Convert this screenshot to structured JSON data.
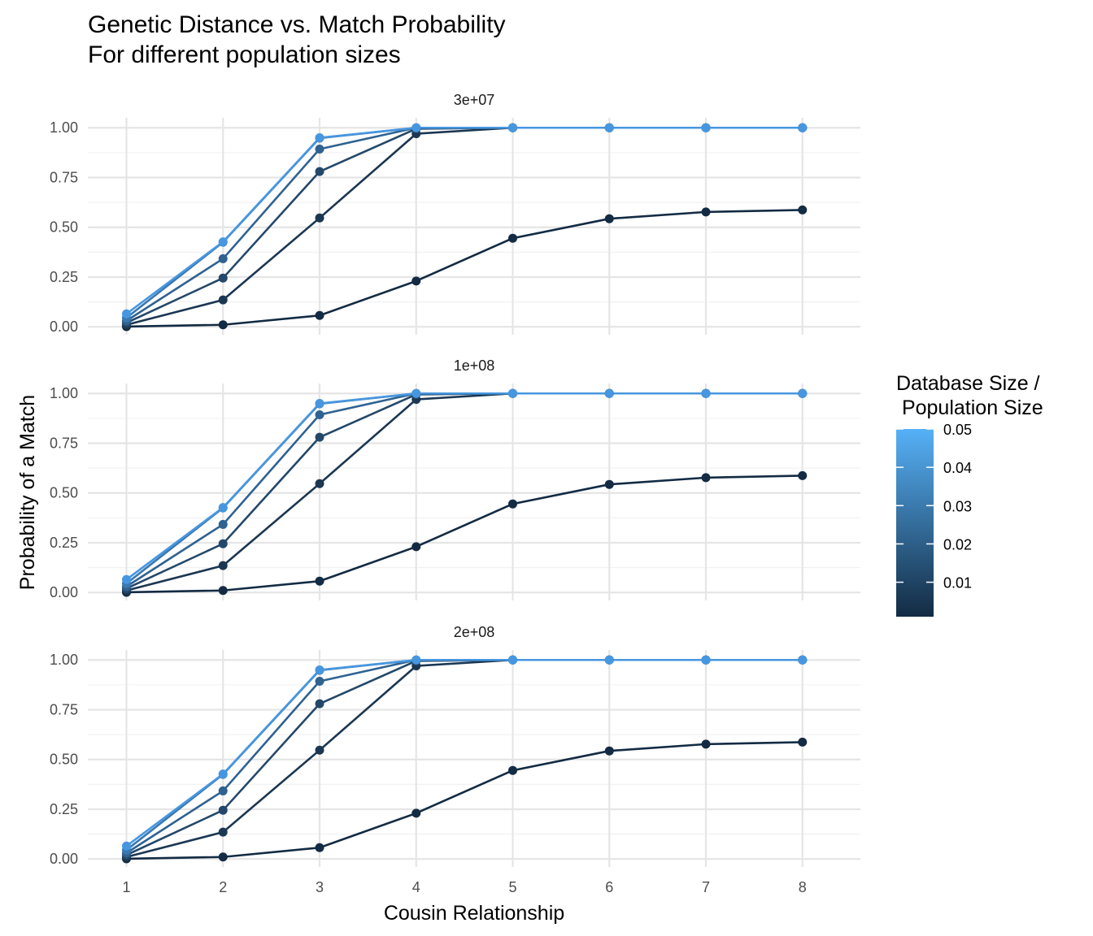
{
  "chart_data": {
    "type": "line",
    "title": "Genetic Distance vs. Match Probability",
    "subtitle": "For different population sizes",
    "xlabel": "Cousin Relationship",
    "ylabel": "Probability of a Match",
    "x": [
      1,
      2,
      3,
      4,
      5,
      6,
      7,
      8
    ],
    "xlim": [
      0.6,
      8.6
    ],
    "ylim": [
      -0.04,
      1.05
    ],
    "yticks": [
      0.0,
      0.25,
      0.5,
      0.75,
      1.0
    ],
    "ytick_labels": [
      "0.00",
      "0.25",
      "0.50",
      "0.75",
      "1.00"
    ],
    "xtick_labels": [
      "1",
      "2",
      "3",
      "4",
      "5",
      "6",
      "7",
      "8"
    ],
    "grid": true,
    "facet_labels": [
      "3e+07",
      "1e+08",
      "2e+08"
    ],
    "legend": {
      "title_line1": "Database Size /",
      "title_line2": " Population Size",
      "ticks": [
        "0.05",
        "0.04",
        "0.03",
        "0.02",
        "0.01"
      ],
      "tick_values": [
        0.05,
        0.04,
        0.03,
        0.02,
        0.01
      ],
      "range": [
        0.001,
        0.05
      ],
      "low_color": "#132B43",
      "high_color": "#56B1F7",
      "placement": "right"
    },
    "series": [
      {
        "ratio": 0.001,
        "color": "#132B43",
        "values": [
          0.001,
          0.01,
          0.057,
          0.23,
          0.445,
          0.543,
          0.577,
          0.587
        ]
      },
      {
        "ratio": 0.01,
        "color": "#1B3752",
        "values": [
          0.01,
          0.135,
          0.547,
          0.97,
          1.0,
          1.0,
          1.0,
          1.0
        ]
      },
      {
        "ratio": 0.02,
        "color": "#24486A",
        "values": [
          0.02,
          0.245,
          0.78,
          0.995,
          1.0,
          1.0,
          1.0,
          1.0
        ]
      },
      {
        "ratio": 0.03,
        "color": "#2F6291",
        "values": [
          0.03,
          0.342,
          0.893,
          1.0,
          1.0,
          1.0,
          1.0,
          1.0
        ]
      },
      {
        "ratio": 0.04,
        "color": "#3A78B2",
        "values": [
          0.045,
          0.425,
          0.948,
          1.0,
          1.0,
          1.0,
          1.0,
          1.0
        ]
      },
      {
        "ratio": 0.05,
        "color": "#4797E0",
        "values": [
          0.065,
          0.427,
          0.95,
          1.0,
          1.0,
          1.0,
          1.0,
          1.0
        ]
      }
    ]
  }
}
